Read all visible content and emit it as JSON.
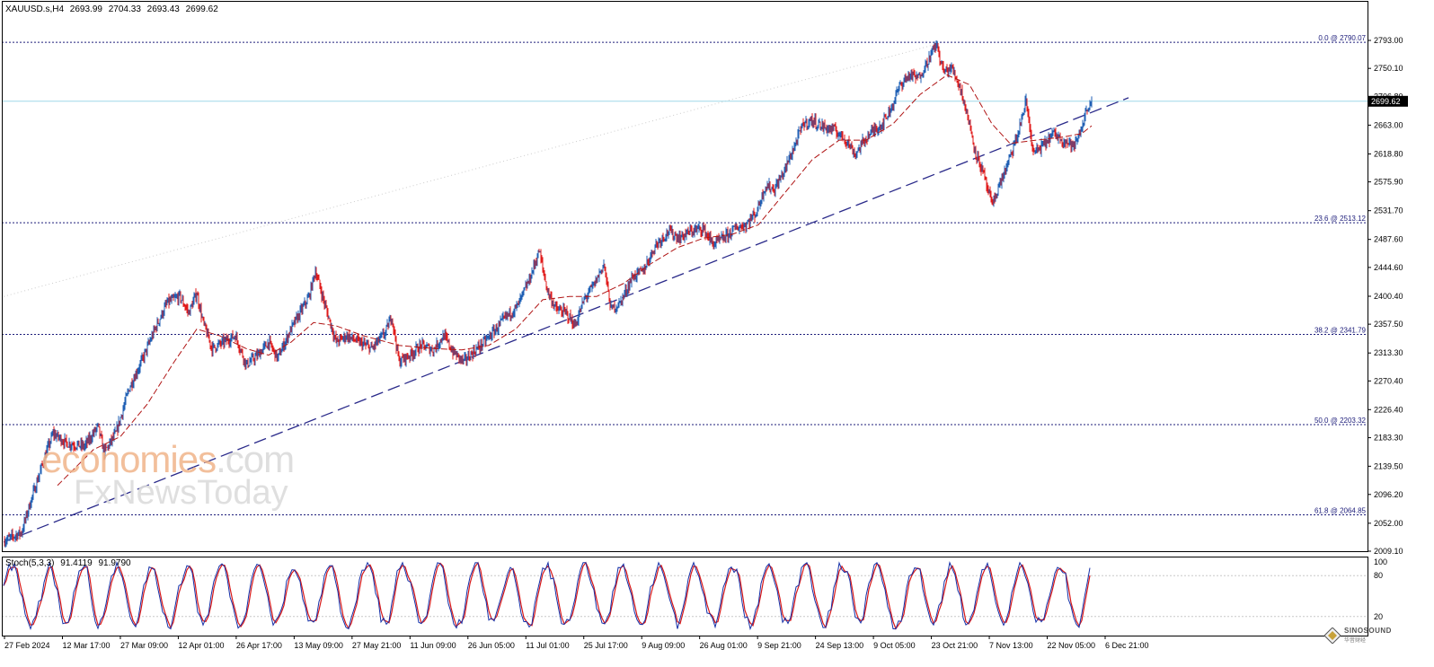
{
  "header": {
    "symbol": "XAUUSD.s,H4",
    "open": "2693.99",
    "high": "2704.33",
    "low": "2693.43",
    "close": "2699.62"
  },
  "stoch_header": {
    "label": "Stoch(5,3,3)",
    "main": "91.4119",
    "signal": "91.9790"
  },
  "watermark": {
    "line1_a": "economies",
    "line1_b": ".com",
    "line2": "FxNewsToday"
  },
  "brand": {
    "name": "SINOSOUND",
    "sub": "华音财经"
  },
  "colors": {
    "bull": "#1f5fb4",
    "bear": "#e01a1a",
    "ma": "#b01515",
    "trend": "#2a2a8a",
    "fib": "#1c1c7a",
    "bid": "#9fd8e8",
    "stoch_main": "#1530a8",
    "stoch_signal": "#d81818",
    "grid": "#c8c8c8"
  },
  "chart_data": {
    "type": "candlestick",
    "symbol": "XAUUSD.s,H4",
    "y_axis": {
      "ylim": [
        2009.1,
        2833.0
      ],
      "ticks": [
        "2793.00",
        "2750.10",
        "2706.80",
        "2663.00",
        "2618.80",
        "2575.90",
        "2531.70",
        "2487.60",
        "2444.60",
        "2400.40",
        "2357.50",
        "2313.30",
        "2270.40",
        "2226.40",
        "2183.30",
        "2139.50",
        "2096.20",
        "2052.00",
        "2009.10"
      ]
    },
    "x_axis": {
      "ticks": [
        "27 Feb 2024",
        "12 Mar 17:00",
        "27 Mar 09:00",
        "12 Apr 01:00",
        "26 Apr 17:00",
        "13 May 09:00",
        "27 May 21:00",
        "11 Jun 09:00",
        "26 Jun 05:00",
        "11 Jul 01:00",
        "25 Jul 17:00",
        "9 Aug 09:00",
        "26 Aug 01:00",
        "9 Sep 21:00",
        "24 Sep 13:00",
        "9 Oct 05:00",
        "23 Oct 21:00",
        "7 Nov 13:00",
        "22 Nov 05:00",
        "6 Dec 21:00"
      ]
    },
    "current_price": {
      "value": 2699.62,
      "label": "2699.62"
    },
    "fibonacci": [
      {
        "level": 0.0,
        "price": 2790.07,
        "label": "0.0 @ 2790.07"
      },
      {
        "level": 23.6,
        "price": 2513.12,
        "label": "23.6 @ 2513.12"
      },
      {
        "level": 38.2,
        "price": 2341.79,
        "label": "38.2 @ 2341.79"
      },
      {
        "level": 50.0,
        "price": 2203.32,
        "label": "50.0 @ 2203.32"
      },
      {
        "level": 61.8,
        "price": 2064.85,
        "label": "61.8 @ 2064.85"
      }
    ],
    "trendline": {
      "from": {
        "bar": 0,
        "price": 2023
      },
      "to": {
        "bar": 1252,
        "price": 2705
      }
    },
    "price_path": [
      [
        0,
        2025
      ],
      [
        20,
        2038
      ],
      [
        30,
        2085
      ],
      [
        45,
        2150
      ],
      [
        55,
        2190
      ],
      [
        70,
        2175
      ],
      [
        90,
        2170
      ],
      [
        105,
        2200
      ],
      [
        112,
        2160
      ],
      [
        125,
        2190
      ],
      [
        140,
        2260
      ],
      [
        155,
        2305
      ],
      [
        170,
        2355
      ],
      [
        182,
        2390
      ],
      [
        196,
        2400
      ],
      [
        206,
        2375
      ],
      [
        215,
        2405
      ],
      [
        222,
        2360
      ],
      [
        232,
        2320
      ],
      [
        245,
        2330
      ],
      [
        258,
        2340
      ],
      [
        270,
        2295
      ],
      [
        283,
        2310
      ],
      [
        295,
        2330
      ],
      [
        305,
        2305
      ],
      [
        318,
        2345
      ],
      [
        330,
        2375
      ],
      [
        340,
        2400
      ],
      [
        347,
        2440
      ],
      [
        358,
        2385
      ],
      [
        370,
        2330
      ],
      [
        382,
        2340
      ],
      [
        395,
        2330
      ],
      [
        410,
        2320
      ],
      [
        425,
        2345
      ],
      [
        432,
        2370
      ],
      [
        440,
        2300
      ],
      [
        452,
        2310
      ],
      [
        465,
        2325
      ],
      [
        478,
        2318
      ],
      [
        490,
        2340
      ],
      [
        500,
        2315
      ],
      [
        512,
        2300
      ],
      [
        523,
        2315
      ],
      [
        535,
        2330
      ],
      [
        548,
        2350
      ],
      [
        560,
        2370
      ],
      [
        572,
        2385
      ],
      [
        585,
        2425
      ],
      [
        596,
        2470
      ],
      [
        605,
        2410
      ],
      [
        615,
        2380
      ],
      [
        626,
        2375
      ],
      [
        636,
        2355
      ],
      [
        646,
        2395
      ],
      [
        658,
        2420
      ],
      [
        668,
        2450
      ],
      [
        676,
        2380
      ],
      [
        686,
        2390
      ],
      [
        700,
        2430
      ],
      [
        712,
        2440
      ],
      [
        726,
        2480
      ],
      [
        740,
        2500
      ],
      [
        752,
        2490
      ],
      [
        765,
        2500
      ],
      [
        778,
        2505
      ],
      [
        790,
        2480
      ],
      [
        802,
        2490
      ],
      [
        815,
        2505
      ],
      [
        826,
        2510
      ],
      [
        838,
        2530
      ],
      [
        848,
        2570
      ],
      [
        858,
        2565
      ],
      [
        868,
        2590
      ],
      [
        880,
        2630
      ],
      [
        890,
        2665
      ],
      [
        900,
        2670
      ],
      [
        912,
        2660
      ],
      [
        925,
        2655
      ],
      [
        938,
        2640
      ],
      [
        948,
        2618
      ],
      [
        958,
        2640
      ],
      [
        968,
        2655
      ],
      [
        978,
        2665
      ],
      [
        988,
        2690
      ],
      [
        998,
        2725
      ],
      [
        1008,
        2740
      ],
      [
        1018,
        2735
      ],
      [
        1028,
        2760
      ],
      [
        1038,
        2788
      ],
      [
        1046,
        2745
      ],
      [
        1056,
        2750
      ],
      [
        1066,
        2715
      ],
      [
        1074,
        2670
      ],
      [
        1082,
        2620
      ],
      [
        1090,
        2590
      ],
      [
        1100,
        2540
      ],
      [
        1108,
        2570
      ],
      [
        1118,
        2605
      ],
      [
        1128,
        2645
      ],
      [
        1138,
        2700
      ],
      [
        1146,
        2620
      ],
      [
        1156,
        2630
      ],
      [
        1168,
        2650
      ],
      [
        1180,
        2640
      ],
      [
        1192,
        2630
      ],
      [
        1200,
        2660
      ],
      [
        1206,
        2690
      ],
      [
        1211,
        2700
      ]
    ],
    "ma_path": [
      [
        60,
        2110
      ],
      [
        100,
        2165
      ],
      [
        130,
        2185
      ],
      [
        160,
        2235
      ],
      [
        190,
        2300
      ],
      [
        215,
        2350
      ],
      [
        240,
        2340
      ],
      [
        270,
        2320
      ],
      [
        295,
        2310
      ],
      [
        320,
        2330
      ],
      [
        345,
        2360
      ],
      [
        370,
        2355
      ],
      [
        400,
        2340
      ],
      [
        440,
        2325
      ],
      [
        480,
        2320
      ],
      [
        510,
        2318
      ],
      [
        540,
        2325
      ],
      [
        570,
        2350
      ],
      [
        600,
        2395
      ],
      [
        630,
        2400
      ],
      [
        660,
        2400
      ],
      [
        690,
        2420
      ],
      [
        720,
        2450
      ],
      [
        750,
        2475
      ],
      [
        780,
        2490
      ],
      [
        810,
        2495
      ],
      [
        840,
        2510
      ],
      [
        870,
        2560
      ],
      [
        900,
        2610
      ],
      [
        930,
        2640
      ],
      [
        960,
        2640
      ],
      [
        990,
        2665
      ],
      [
        1020,
        2710
      ],
      [
        1050,
        2740
      ],
      [
        1075,
        2725
      ],
      [
        1100,
        2665
      ],
      [
        1120,
        2635
      ],
      [
        1150,
        2640
      ],
      [
        1180,
        2645
      ],
      [
        1200,
        2650
      ],
      [
        1211,
        2662
      ]
    ],
    "stochastic": {
      "name": "Stoch(5,3,3)",
      "k_last": 91.4119,
      "d_last": 91.979,
      "levels": [
        20,
        80
      ],
      "ylim": [
        0,
        100
      ],
      "y_ticks": [
        "100",
        "80",
        "20",
        "0"
      ]
    }
  }
}
